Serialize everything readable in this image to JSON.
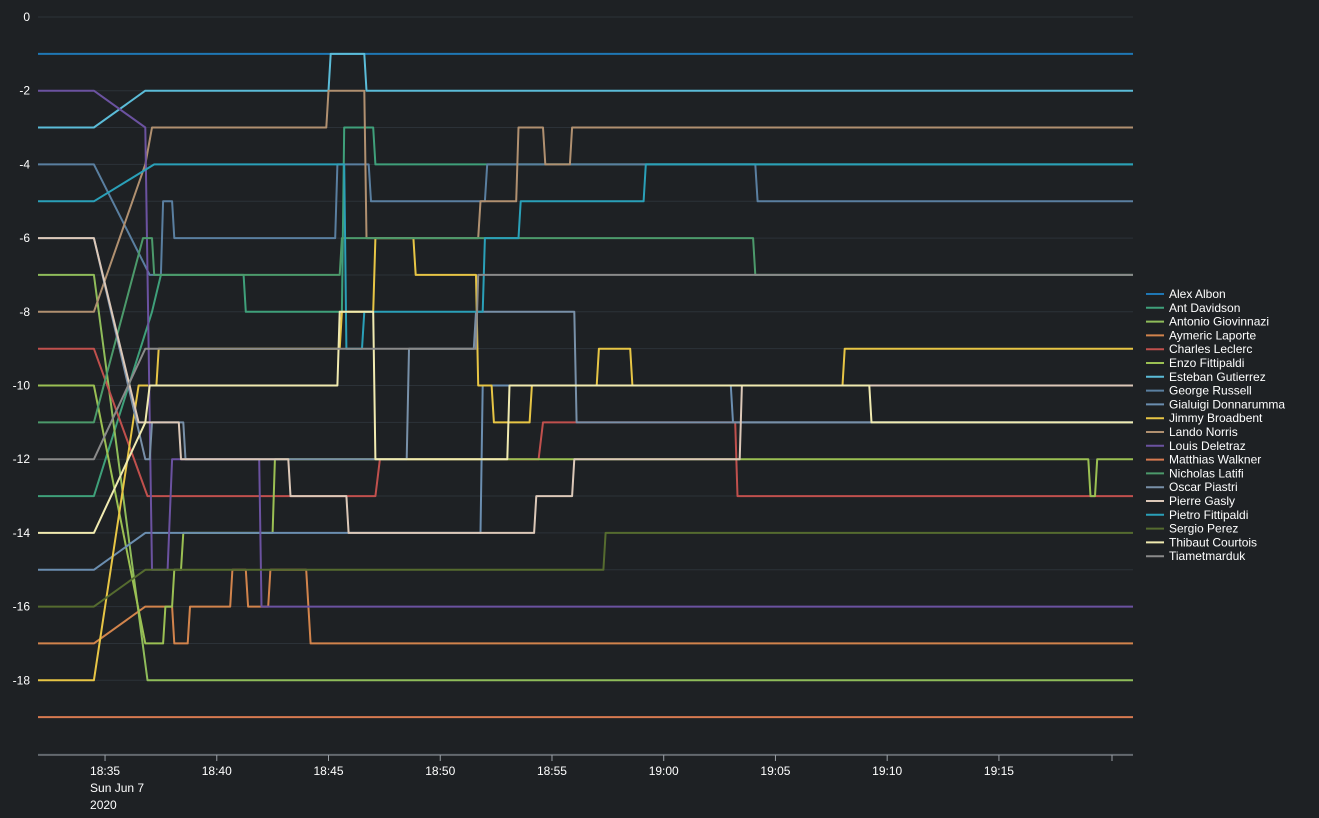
{
  "chart_data": {
    "type": "line",
    "title": "",
    "xlabel": "",
    "ylabel": "",
    "ylim": [
      -20,
      0
    ],
    "xlim": [
      "18:32",
      "19:21"
    ],
    "grid": true,
    "legend_placement": "right",
    "x_ticks": [
      "18:35",
      "18:40",
      "18:45",
      "18:50",
      "18:55",
      "19:00",
      "19:05",
      "19:10",
      "19:15"
    ],
    "x_tick_sublabel": [
      "Sun Jun 7",
      "2020"
    ],
    "y_ticks": [
      "0",
      "-2",
      "-4",
      "-6",
      "-8",
      "-10",
      "-12",
      "-14",
      "-16",
      "-18"
    ],
    "series": [
      {
        "name": "Alex Albon",
        "color": "#1f77b4",
        "points": [
          [
            "18:32",
            -1
          ],
          [
            "19:21",
            -1
          ]
        ]
      },
      {
        "name": "Ant Davidson",
        "color": "#3fa07a",
        "points": [
          [
            "18:32",
            -13
          ],
          [
            "18:34.5",
            -13
          ],
          [
            "18:37.1",
            -8
          ],
          [
            "18:37.5",
            -7
          ],
          [
            "18:41.2",
            -7
          ],
          [
            "18:41.3",
            -8
          ],
          [
            "18:45.6",
            -8
          ],
          [
            "18:45.7",
            -3
          ],
          [
            "18:47.0",
            -3
          ],
          [
            "18:47.1",
            -4
          ],
          [
            "19:21",
            -4
          ]
        ]
      },
      {
        "name": "Antonio Giovinnazi",
        "color": "#8fbc5a",
        "points": [
          [
            "18:32",
            -7
          ],
          [
            "18:34.5",
            -7
          ],
          [
            "18:36.9",
            -18
          ],
          [
            "19:21",
            -18
          ]
        ]
      },
      {
        "name": "Aymeric Laporte",
        "color": "#d2844c",
        "points": [
          [
            "18:32",
            -17
          ],
          [
            "18:34.5",
            -17
          ],
          [
            "18:36.8",
            -16
          ],
          [
            "18:38.0",
            -16
          ],
          [
            "18:38.1",
            -17
          ],
          [
            "18:38.7",
            -17
          ],
          [
            "18:38.8",
            -16
          ],
          [
            "18:40.6",
            -16
          ],
          [
            "18:40.7",
            -15
          ],
          [
            "18:41.3",
            -15
          ],
          [
            "18:41.4",
            -16
          ],
          [
            "18:42.3",
            -16
          ],
          [
            "18:42.4",
            -15
          ],
          [
            "18:44.0",
            -15
          ],
          [
            "18:44.2",
            -17
          ],
          [
            "19:21",
            -17
          ]
        ]
      },
      {
        "name": "Charles Leclerc",
        "color": "#c0504d",
        "points": [
          [
            "18:32",
            -9
          ],
          [
            "18:34.5",
            -9
          ],
          [
            "18:36.9",
            -13
          ],
          [
            "18:47.1",
            -13
          ],
          [
            "18:47.3",
            -12
          ],
          [
            "18:54.4",
            -12
          ],
          [
            "18:54.6",
            -11
          ],
          [
            "19:03.2",
            -11
          ],
          [
            "19:03.3",
            -13
          ],
          [
            "19:21",
            -13
          ]
        ]
      },
      {
        "name": "Enzo Fittipaldi",
        "color": "#9bc053",
        "points": [
          [
            "18:32",
            -10
          ],
          [
            "18:34.5",
            -10
          ],
          [
            "18:36.8",
            -17
          ],
          [
            "18:37.6",
            -17
          ],
          [
            "18:37.7",
            -16
          ],
          [
            "18:38.0",
            -16
          ],
          [
            "18:38.1",
            -15
          ],
          [
            "18:38.4",
            -15
          ],
          [
            "18:38.5",
            -14
          ],
          [
            "18:42.5",
            -14
          ],
          [
            "18:42.6",
            -12
          ],
          [
            "19:19.0",
            -12
          ],
          [
            "19:19.1",
            -13
          ],
          [
            "19:19.3",
            -13
          ],
          [
            "19:19.4",
            -12
          ],
          [
            "19:21",
            -12
          ]
        ]
      },
      {
        "name": "Esteban Gutierrez",
        "color": "#5bbcd8",
        "points": [
          [
            "18:32",
            -3
          ],
          [
            "18:34.5",
            -3
          ],
          [
            "18:36.8",
            -2
          ],
          [
            "18:45.0",
            -2
          ],
          [
            "18:45.1",
            -1
          ],
          [
            "18:46.6",
            -1
          ],
          [
            "18:46.7",
            -2
          ],
          [
            "19:21",
            -2
          ]
        ]
      },
      {
        "name": "George Russell",
        "color": "#5a7fa0",
        "points": [
          [
            "18:32",
            -4
          ],
          [
            "18:34.5",
            -4
          ],
          [
            "18:37.0",
            -7
          ],
          [
            "18:37.5",
            -7
          ],
          [
            "18:37.6",
            -5
          ],
          [
            "18:38.0",
            -5
          ],
          [
            "18:38.1",
            -6
          ],
          [
            "18:45.3",
            -6
          ],
          [
            "18:45.4",
            -4
          ],
          [
            "18:46.8",
            -4
          ],
          [
            "18:46.9",
            -5
          ],
          [
            "18:52.0",
            -5
          ],
          [
            "18:52.1",
            -4
          ],
          [
            "19:04.1",
            -4
          ],
          [
            "19:04.2",
            -5
          ],
          [
            "19:21",
            -5
          ]
        ]
      },
      {
        "name": "Gialuigi Donnarumma",
        "color": "#6b8eb0",
        "points": [
          [
            "18:32",
            -15
          ],
          [
            "18:34.5",
            -15
          ],
          [
            "18:36.8",
            -14
          ],
          [
            "18:48.0",
            -14
          ],
          [
            "18:51.8",
            -14
          ],
          [
            "18:51.9",
            -10
          ],
          [
            "19:01.0",
            -10
          ],
          [
            "19:03.0",
            -10
          ],
          [
            "19:03.1",
            -11
          ],
          [
            "19:21",
            -11
          ]
        ]
      },
      {
        "name": "Jimmy Broadbent",
        "color": "#e7c545",
        "points": [
          [
            "18:32",
            -18
          ],
          [
            "18:34.5",
            -18
          ],
          [
            "18:36.5",
            -10
          ],
          [
            "18:37.3",
            -10
          ],
          [
            "18:37.4",
            -9
          ],
          [
            "18:45.5",
            -9
          ],
          [
            "18:45.6",
            -8
          ],
          [
            "18:47.0",
            -8
          ],
          [
            "18:47.1",
            -6
          ],
          [
            "18:48.8",
            -6
          ],
          [
            "18:48.9",
            -7
          ],
          [
            "18:51.6",
            -7
          ],
          [
            "18:51.7",
            -10
          ],
          [
            "18:52.3",
            -10
          ],
          [
            "18:52.4",
            -11
          ],
          [
            "18:54.0",
            -11
          ],
          [
            "18:54.1",
            -10
          ],
          [
            "18:57.0",
            -10
          ],
          [
            "18:57.1",
            -9
          ],
          [
            "18:58.5",
            -9
          ],
          [
            "18:58.6",
            -10
          ],
          [
            "19:08.0",
            -10
          ],
          [
            "19:08.1",
            -9
          ],
          [
            "19:21",
            -9
          ]
        ]
      },
      {
        "name": "Lando Norris",
        "color": "#b09070",
        "points": [
          [
            "18:32",
            -8
          ],
          [
            "18:34.5",
            -8
          ],
          [
            "18:36.8",
            -4
          ],
          [
            "18:37.1",
            -3
          ],
          [
            "18:44.9",
            -3
          ],
          [
            "18:45.0",
            -2
          ],
          [
            "18:46.6",
            -2
          ],
          [
            "18:46.7",
            -6
          ],
          [
            "18:51.7",
            -6
          ],
          [
            "18:51.8",
            -5
          ],
          [
            "18:53.4",
            -5
          ],
          [
            "18:53.5",
            -3
          ],
          [
            "18:54.6",
            -3
          ],
          [
            "18:54.7",
            -4
          ],
          [
            "18:55.8",
            -4
          ],
          [
            "18:55.9",
            -3
          ],
          [
            "19:21",
            -3
          ]
        ]
      },
      {
        "name": "Louis Deletraz",
        "color": "#6b52a0",
        "points": [
          [
            "18:32",
            -2
          ],
          [
            "18:34.5",
            -2
          ],
          [
            "18:36.8",
            -3
          ],
          [
            "18:37.1",
            -15
          ],
          [
            "18:37.8",
            -15
          ],
          [
            "18:38.0",
            -12
          ],
          [
            "18:41.9",
            -12
          ],
          [
            "18:42.0",
            -16
          ],
          [
            "19:21",
            -16
          ]
        ]
      },
      {
        "name": "Matthias Walkner",
        "color": "#d77a50",
        "points": [
          [
            "18:32",
            -19
          ],
          [
            "19:21",
            -19
          ]
        ]
      },
      {
        "name": "Nicholas Latifi",
        "color": "#4c9a6b",
        "points": [
          [
            "18:32",
            -11
          ],
          [
            "18:34.5",
            -11
          ],
          [
            "18:36.7",
            -6
          ],
          [
            "18:37.1",
            -6
          ],
          [
            "18:37.2",
            -7
          ],
          [
            "18:45.5",
            -7
          ],
          [
            "18:45.6",
            -6
          ],
          [
            "19:04.0",
            -6
          ],
          [
            "19:04.1",
            -7
          ],
          [
            "19:21",
            -7
          ]
        ]
      },
      {
        "name": "Oscar Piastri",
        "color": "#7890a8",
        "points": [
          [
            "18:32",
            -6
          ],
          [
            "18:34.5",
            -6
          ],
          [
            "18:36.8",
            -12
          ],
          [
            "18:37.0",
            -12
          ],
          [
            "18:37.1",
            -11
          ],
          [
            "18:38.5",
            -11
          ],
          [
            "18:38.6",
            -12
          ],
          [
            "18:48.5",
            -12
          ],
          [
            "18:48.6",
            -9
          ],
          [
            "18:51.5",
            -9
          ],
          [
            "18:51.6",
            -8
          ],
          [
            "18:56.0",
            -8
          ],
          [
            "18:56.1",
            -11
          ],
          [
            "19:21",
            -11
          ]
        ]
      },
      {
        "name": "Pierre Gasly",
        "color": "#dcc8b8",
        "points": [
          [
            "18:32",
            -6
          ],
          [
            "18:34.5",
            -6
          ],
          [
            "18:36.5",
            -11
          ],
          [
            "18:38.3",
            -11
          ],
          [
            "18:38.4",
            -12
          ],
          [
            "18:43.2",
            -12
          ],
          [
            "18:43.3",
            -13
          ],
          [
            "18:45.8",
            -13
          ],
          [
            "18:45.9",
            -14
          ],
          [
            "18:54.2",
            -14
          ],
          [
            "18:54.3",
            -13
          ],
          [
            "18:55.9",
            -13
          ],
          [
            "18:56.0",
            -12
          ],
          [
            "19:03.4",
            -12
          ],
          [
            "19:03.5",
            -10
          ],
          [
            "19:21",
            -10
          ]
        ]
      },
      {
        "name": "Pietro Fittipaldi",
        "color": "#2aa0b8",
        "points": [
          [
            "18:32",
            -5
          ],
          [
            "18:34.5",
            -5
          ],
          [
            "18:37.2",
            -4
          ],
          [
            "18:45.7",
            -4
          ],
          [
            "18:45.8",
            -9
          ],
          [
            "18:46.5",
            -9
          ],
          [
            "18:46.6",
            -8
          ],
          [
            "18:51.9",
            -8
          ],
          [
            "18:52.0",
            -6
          ],
          [
            "18:53.5",
            -6
          ],
          [
            "18:53.6",
            -5
          ],
          [
            "18:59.1",
            -5
          ],
          [
            "18:59.2",
            -4
          ],
          [
            "19:21",
            -4
          ]
        ]
      },
      {
        "name": "Sergio Perez",
        "color": "#556b2f",
        "points": [
          [
            "18:32",
            -16
          ],
          [
            "18:34.5",
            -16
          ],
          [
            "18:36.8",
            -15
          ],
          [
            "18:57.3",
            -15
          ],
          [
            "18:57.4",
            -14
          ],
          [
            "19:08.0",
            -14
          ],
          [
            "19:21",
            -14
          ]
        ]
      },
      {
        "name": "Thibaut Courtois",
        "color": "#f0eab0",
        "points": [
          [
            "18:32",
            -14
          ],
          [
            "18:34.5",
            -14
          ],
          [
            "18:36.8",
            -11
          ],
          [
            "18:37.0",
            -10
          ],
          [
            "18:45.4",
            -10
          ],
          [
            "18:45.5",
            -8
          ],
          [
            "18:47.0",
            -8
          ],
          [
            "18:47.1",
            -12
          ],
          [
            "18:53.0",
            -12
          ],
          [
            "18:53.1",
            -10
          ],
          [
            "19:09.2",
            -10
          ],
          [
            "19:09.3",
            -11
          ],
          [
            "19:21",
            -11
          ]
        ]
      },
      {
        "name": "Tiametmarduk",
        "color": "#8a8a8a",
        "points": [
          [
            "18:32",
            -12
          ],
          [
            "18:34.5",
            -12
          ],
          [
            "18:36.8",
            -9
          ],
          [
            "18:51.6",
            -9
          ],
          [
            "18:51.7",
            -7
          ],
          [
            "19:21",
            -7
          ]
        ]
      }
    ]
  }
}
